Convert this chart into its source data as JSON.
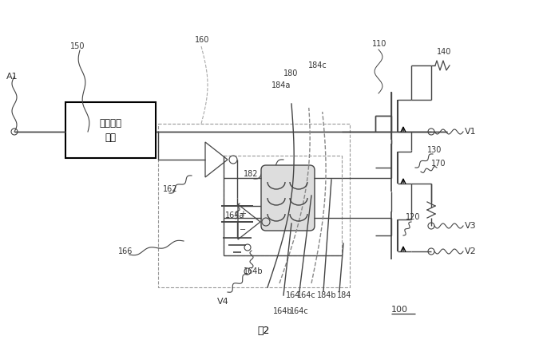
{
  "fig_width": 6.8,
  "fig_height": 4.26,
  "dpi": 100,
  "bg_color": "#ffffff",
  "lc": "#444444",
  "tc": "#333333",
  "gray": "#888888",
  "box_text": "准位移位\n单元",
  "caption": "图2",
  "ref_100": "100"
}
